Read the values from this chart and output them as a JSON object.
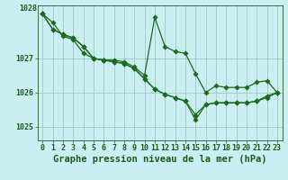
{
  "title": "Graphe pression niveau de la mer (hPa)",
  "bg_color": "#cbeef3",
  "grid_color": "#99ccbb",
  "line_color": "#1a6b1a",
  "xlim": [
    -0.5,
    23.5
  ],
  "ylim": [
    1024.6,
    1028.55
  ],
  "yticks": [
    1025,
    1026,
    1027
  ],
  "ytick_top_label": "1028",
  "ytick_top_val": 1028.45,
  "xticks": [
    0,
    1,
    2,
    3,
    4,
    5,
    6,
    7,
    8,
    9,
    10,
    11,
    12,
    13,
    14,
    15,
    16,
    17,
    18,
    19,
    20,
    21,
    22,
    23
  ],
  "series": [
    [
      1028.3,
      1028.05,
      1027.65,
      1027.55,
      1027.15,
      1027.0,
      1026.95,
      1026.95,
      1026.9,
      1026.75,
      1026.5,
      1028.2,
      1027.35,
      1027.2,
      1027.15,
      1026.55,
      1026.0,
      1026.2,
      1026.15,
      1026.15,
      1026.15,
      1026.3,
      1026.35,
      1026.0
    ],
    [
      1028.3,
      1027.85,
      1027.7,
      1027.6,
      1027.35,
      1027.0,
      1026.95,
      1026.9,
      1026.85,
      1026.7,
      1026.4,
      1026.1,
      1025.95,
      1025.85,
      1025.75,
      1025.35,
      1025.65,
      1025.7,
      1025.7,
      1025.7,
      1025.7,
      1025.75,
      1025.9,
      1026.0
    ],
    [
      1028.3,
      1027.85,
      1027.7,
      1027.6,
      1027.35,
      1027.0,
      1026.95,
      1026.9,
      1026.85,
      1026.7,
      1026.4,
      1026.1,
      1025.95,
      1025.85,
      1025.75,
      1025.2,
      1025.65,
      1025.7,
      1025.7,
      1025.7,
      1025.7,
      1025.75,
      1025.85,
      1026.0
    ],
    [
      1028.3,
      null,
      null,
      null,
      null,
      null,
      null,
      null,
      null,
      null,
      null,
      null,
      null,
      null,
      1025.75,
      1025.2,
      null,
      null,
      null,
      null,
      null,
      null,
      null,
      1026.0
    ]
  ],
  "marker_size": 2.8,
  "linewidth": 0.9,
  "title_fontsize": 7.5,
  "tick_fontsize": 6.0,
  "title_color": "#1a5c1a",
  "tick_color": "#1a5c1a",
  "xlabel_color": "#1a5c1a"
}
